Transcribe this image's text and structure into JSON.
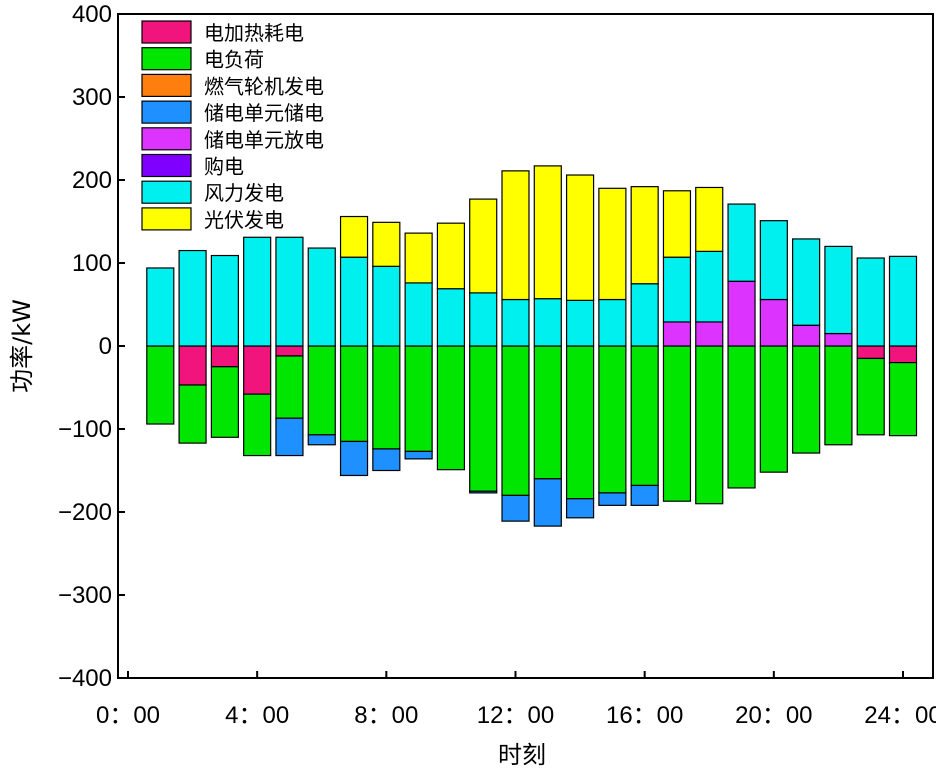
{
  "chart_data": {
    "type": "bar",
    "stacked": true,
    "xlabel": "时刻",
    "ylabel": "功率/kW",
    "ylim": [
      -400,
      400
    ],
    "yticks": [
      -400,
      -300,
      -200,
      -100,
      0,
      100,
      200,
      300,
      400
    ],
    "ytick_labels": [
      "−400",
      "−300",
      "−200",
      "−100",
      "0",
      "100",
      "200",
      "300",
      "400"
    ],
    "xlim": [
      0,
      24
    ],
    "xticks": [
      0,
      4,
      8,
      12,
      16,
      20,
      24
    ],
    "xtick_labels": [
      "0：00",
      "4：00",
      "8：00",
      "12：00",
      "16：00",
      "20：00",
      "24：00"
    ],
    "legend_position": "top-left",
    "periods": [
      1,
      2,
      3,
      4,
      5,
      6,
      7,
      8,
      9,
      10,
      11,
      12,
      13,
      14,
      15,
      16,
      17,
      18,
      19,
      20,
      21,
      22,
      23,
      24
    ],
    "series": [
      {
        "name": "电加热耗电",
        "color": "#f0147c",
        "values": [
          0,
          -47,
          -25,
          -58,
          -12,
          0,
          0,
          0,
          0,
          0,
          0,
          0,
          0,
          0,
          0,
          0,
          0,
          0,
          0,
          0,
          0,
          0,
          -15,
          -20
        ]
      },
      {
        "name": "电负荷",
        "color": "#00e600",
        "values": [
          -94,
          -70,
          -85,
          -74,
          -75,
          -107,
          -115,
          -124,
          -127,
          -149,
          -175,
          -180,
          -160,
          -184,
          -177,
          -168,
          -187,
          -190,
          -171,
          -152,
          -129,
          -119,
          -92,
          -88
        ]
      },
      {
        "name": "燃气轮机发电",
        "color": "#ff7f0e",
        "values": [
          0,
          0,
          0,
          0,
          0,
          0,
          0,
          0,
          0,
          0,
          0,
          0,
          0,
          0,
          0,
          0,
          0,
          0,
          0,
          0,
          0,
          0,
          0,
          0
        ]
      },
      {
        "name": "储电单元储电",
        "color": "#1e90ff",
        "values": [
          0,
          0,
          0,
          0,
          -45,
          -12,
          -41,
          -26,
          -9,
          0,
          -2,
          -31,
          -57,
          -23,
          -15,
          -24,
          0,
          0,
          0,
          0,
          0,
          0,
          0,
          0
        ]
      },
      {
        "name": "储电单元放电",
        "color": "#dd33ff",
        "values": [
          0,
          0,
          0,
          0,
          0,
          0,
          0,
          0,
          0,
          0,
          0,
          0,
          0,
          0,
          0,
          0,
          29,
          29,
          78,
          56,
          25,
          15,
          0,
          0
        ]
      },
      {
        "name": "购电",
        "color": "#8000ff",
        "values": [
          0,
          0,
          0,
          0,
          0,
          0,
          0,
          0,
          0,
          0,
          0,
          0,
          0,
          0,
          0,
          0,
          0,
          0,
          0,
          0,
          0,
          0,
          0,
          0
        ]
      },
      {
        "name": "风力发电",
        "color": "#00f0f0",
        "values": [
          94,
          115,
          109,
          131,
          131,
          118,
          107,
          96,
          76,
          69,
          64,
          56,
          57,
          55,
          56,
          75,
          78,
          85,
          93,
          95,
          104,
          105,
          106,
          108
        ]
      },
      {
        "name": "光伏发电",
        "color": "#ffff00",
        "values": [
          0,
          0,
          0,
          0,
          0,
          0,
          49,
          53,
          60,
          79,
          113,
          155,
          160,
          151,
          134,
          117,
          80,
          77,
          0,
          0,
          0,
          0,
          0,
          0
        ]
      }
    ]
  }
}
